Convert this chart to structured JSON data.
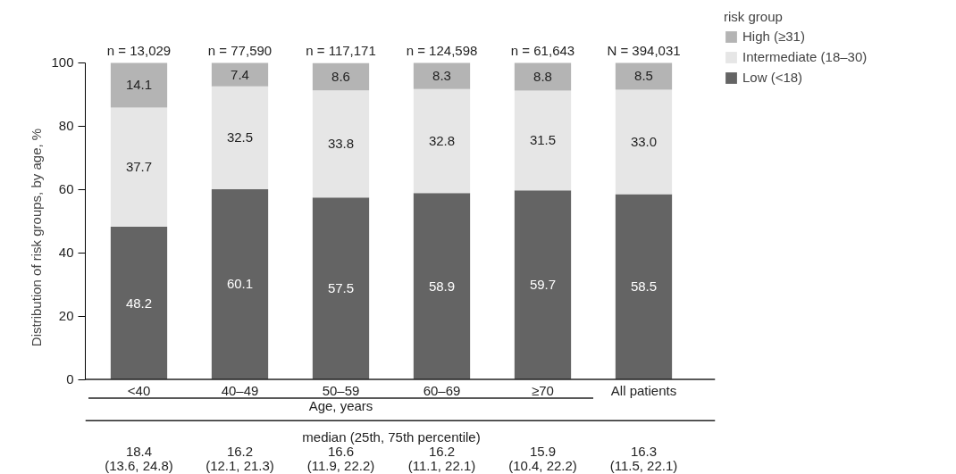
{
  "chart_data": {
    "type": "bar",
    "stacked": true,
    "ylabel": "Distribution of risk groups, by age, %",
    "xlabel": "Age, years",
    "legend_title": "risk group",
    "legend": "top right",
    "categories": [
      "<40",
      "40–49",
      "50–59",
      "60–69",
      "≥70",
      "All patients"
    ],
    "series": [
      {
        "name": "Low (<18)",
        "color": "#646464",
        "values": [
          48.2,
          60.1,
          57.5,
          58.9,
          59.7,
          58.5
        ]
      },
      {
        "name": "Intermediate (18–30)",
        "color": "#e6e6e6",
        "values": [
          37.7,
          32.5,
          33.8,
          32.8,
          31.5,
          33.0
        ],
        "value_labels": [
          "37.7",
          "32.5",
          "33.8",
          "32.8",
          "31.5",
          "33.0"
        ]
      },
      {
        "name": "High (≥31)",
        "color": "#b4b4b4",
        "values": [
          14.1,
          7.4,
          8.6,
          8.3,
          8.8,
          8.5
        ]
      }
    ],
    "data_labels": true,
    "ylim": [
      0,
      100
    ],
    "yticks": [
      0,
      20,
      40,
      60,
      80,
      100
    ],
    "grid": false,
    "annotations": [
      {
        "text": "n = 13,029",
        "x": "<40",
        "y": 100
      },
      {
        "text": "n = 77,590",
        "x": "40–49",
        "y": 100
      },
      {
        "text": "n = 117,171",
        "x": "50–59",
        "y": 100
      },
      {
        "text": "n = 124,598",
        "x": "60–69",
        "y": 100
      },
      {
        "text": "n = 61,643",
        "x": "≥70",
        "y": 100
      },
      {
        "text": "N = 394,031",
        "x": "All patients",
        "y": 100
      },
      "median (25th, 75th percentile)",
      "18.4\n(13.6, 24.8)",
      "16.2\n(12.1, 21.3)",
      "16.6\n(11.9, 22.2)",
      "16.2\n(11.1, 22.1)",
      "15.9\n(10.4, 22.2)",
      "16.3\n(11.5, 22.1)"
    ]
  }
}
